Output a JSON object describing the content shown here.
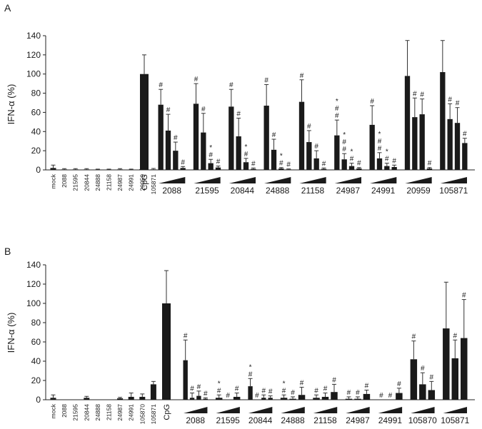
{
  "chart_data": [
    {
      "panel": "A",
      "type": "bar",
      "ylabel": "IFN-α (%)",
      "yticks": [
        "0",
        "20",
        "40",
        "60",
        "80",
        "100",
        "120",
        "140"
      ],
      "ylim": [
        0,
        140
      ],
      "controls": [
        "mock",
        "2088",
        "21595",
        "20844",
        "24888",
        "21158",
        "24987",
        "24991",
        "20959",
        "105871"
      ],
      "control_values": [
        2,
        0.5,
        0.5,
        0.5,
        0.3,
        0.3,
        0.5,
        0.3,
        0.8,
        0.5
      ],
      "control_errors": [
        3,
        0.8,
        0.8,
        0.8,
        0.5,
        0.5,
        0.8,
        0.5,
        2,
        1
      ],
      "cpg_label": "CpG",
      "cpg_value": 100,
      "cpg_error": 20,
      "groups": [
        {
          "name": "2088",
          "values": [
            68,
            41,
            20,
            2
          ],
          "errors": [
            16,
            17,
            9,
            1.5
          ],
          "marks": [
            "#",
            "#",
            "#",
            "#"
          ]
        },
        {
          "name": "21595",
          "values": [
            69,
            39,
            7,
            2.5
          ],
          "errors": [
            21,
            20,
            4,
            1.5
          ],
          "marks": [
            "#",
            "#",
            "*\n#",
            "#"
          ]
        },
        {
          "name": "20844",
          "values": [
            66,
            35,
            8,
            1
          ],
          "errors": [
            18,
            19,
            4,
            1
          ],
          "marks": [
            "#",
            "#",
            "*\n#",
            "#"
          ]
        },
        {
          "name": "24888",
          "values": [
            67,
            21,
            1.5,
            0.5
          ],
          "errors": [
            22,
            11,
            1,
            0.5
          ],
          "marks": [
            "#",
            "#",
            "*\n#",
            "#"
          ]
        },
        {
          "name": "21158",
          "values": [
            71,
            29,
            12,
            1
          ],
          "errors": [
            23,
            12,
            8,
            1
          ],
          "marks": [
            "#",
            "#",
            "#",
            "#"
          ]
        },
        {
          "name": "24987",
          "values": [
            36,
            11,
            4,
            1.5
          ],
          "errors": [
            16,
            6,
            3,
            1
          ],
          "marks": [
            "*\n#\n#",
            "*\n#\n#",
            "*\n#",
            "#"
          ]
        },
        {
          "name": "24991",
          "values": [
            47,
            12,
            4,
            3
          ],
          "errors": [
            20,
            6,
            3,
            2
          ],
          "marks": [
            "#",
            "*\n#\n#",
            "*\n#",
            "#"
          ]
        },
        {
          "name": "20959",
          "values": [
            98,
            55,
            58,
            1.5
          ],
          "errors": [
            37,
            20,
            16,
            1
          ],
          "marks": [
            "",
            "#",
            "#",
            "#"
          ]
        },
        {
          "name": "105871",
          "values": [
            102,
            53,
            49,
            28
          ],
          "errors": [
            33,
            16,
            16,
            5
          ],
          "marks": [
            "",
            "#",
            "#",
            "#"
          ]
        }
      ]
    },
    {
      "panel": "B",
      "type": "bar",
      "ylabel": "IFN-α (%)",
      "yticks": [
        "0",
        "20",
        "40",
        "60",
        "80",
        "100",
        "120",
        "140"
      ],
      "ylim": [
        0,
        140
      ],
      "controls": [
        "mock",
        "2088",
        "21595",
        "20844",
        "24888",
        "21158",
        "24987",
        "24991",
        "105870",
        "105871"
      ],
      "control_values": [
        2,
        0,
        0,
        2,
        0,
        0,
        1.5,
        3,
        3,
        16
      ],
      "control_errors": [
        3,
        0,
        0,
        1.5,
        0,
        0,
        1,
        4,
        3,
        3
      ],
      "cpg_label": "CpG",
      "cpg_value": 100,
      "cpg_error": 34,
      "groups": [
        {
          "name": "2088",
          "values": [
            41,
            2,
            4,
            1
          ],
          "errors": [
            21,
            5,
            5,
            1
          ],
          "marks": [
            "#",
            "#",
            "#",
            "#"
          ]
        },
        {
          "name": "21595",
          "values": [
            2,
            0,
            3
          ],
          "errors": [
            3,
            0,
            4
          ],
          "marks": [
            "*\n#",
            "#",
            "#"
          ]
        },
        {
          "name": "20844",
          "values": [
            14,
            0,
            2,
            2
          ],
          "errors": [
            8,
            0,
            3,
            2
          ],
          "marks": [
            "*\n#",
            "#",
            "#",
            "#"
          ]
        },
        {
          "name": "24888",
          "values": [
            2,
            1,
            5
          ],
          "errors": [
            3,
            2,
            8
          ],
          "marks": [
            "*\n#",
            "#",
            "#"
          ]
        },
        {
          "name": "21158",
          "values": [
            2,
            3,
            8
          ],
          "errors": [
            3,
            4,
            8
          ],
          "marks": [
            "#",
            "#",
            "#"
          ]
        },
        {
          "name": "24987",
          "values": [
            1,
            1,
            6
          ],
          "errors": [
            2,
            2,
            4
          ],
          "marks": [
            "#",
            "#",
            "#"
          ]
        },
        {
          "name": "24991",
          "values": [
            0,
            0,
            7
          ],
          "errors": [
            0,
            0,
            5
          ],
          "marks": [
            "#",
            "#",
            "#"
          ]
        },
        {
          "name": "105870",
          "values": [
            42,
            16,
            10
          ],
          "errors": [
            19,
            12,
            9
          ],
          "marks": [
            "#",
            "#",
            "#"
          ]
        },
        {
          "name": "105871",
          "values": [
            74,
            43,
            64
          ],
          "errors": [
            48,
            19,
            40
          ],
          "marks": [
            "",
            "#",
            "#"
          ]
        }
      ]
    }
  ],
  "panel_labels": [
    "A",
    "B"
  ]
}
